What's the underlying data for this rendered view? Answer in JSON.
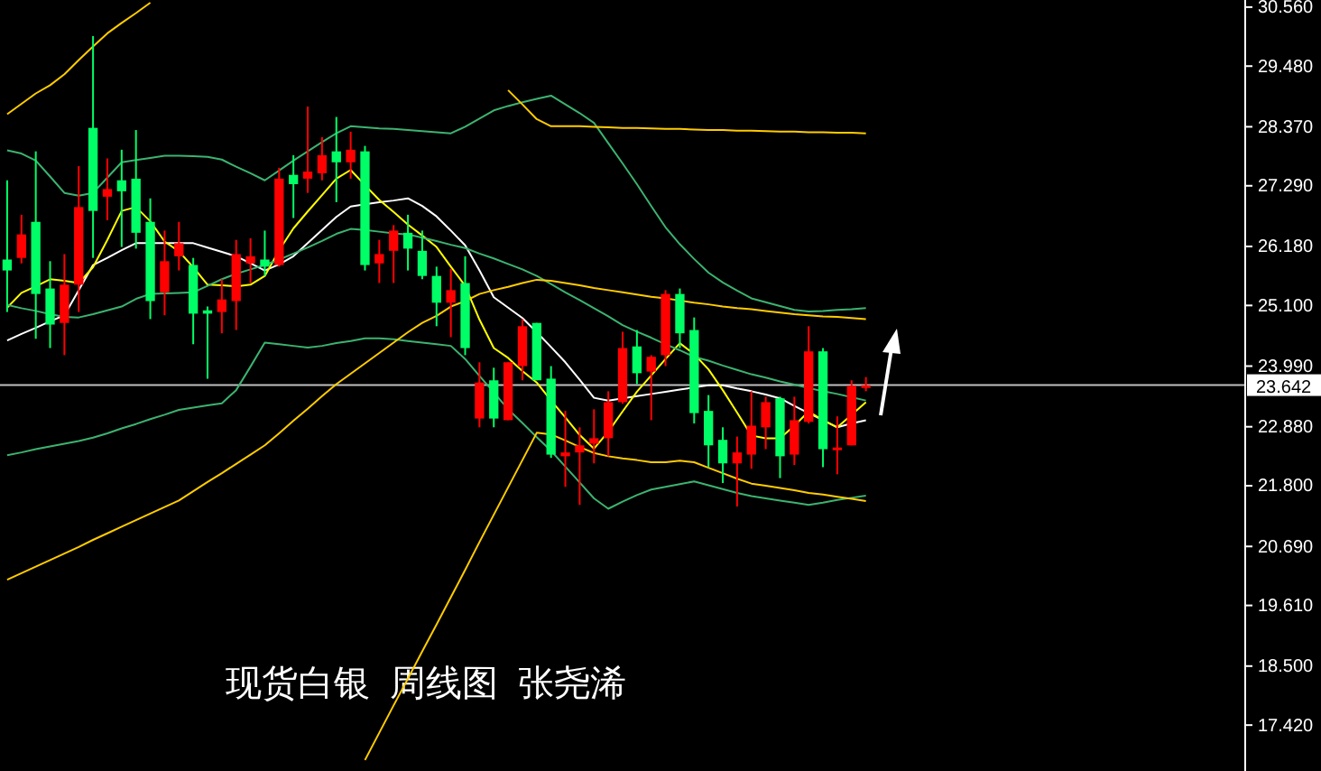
{
  "chart_data": {
    "type": "candlestick",
    "title": "现货白银  周线图  张尧浠",
    "categories": [
      null,
      null,
      null,
      null,
      null,
      null,
      null,
      null,
      null,
      null,
      null,
      null,
      null,
      null,
      null,
      null,
      null,
      null,
      null,
      null,
      null,
      null,
      null,
      null,
      null,
      null,
      null,
      null,
      null,
      null,
      null,
      null,
      null,
      null,
      null,
      null,
      null,
      null,
      null,
      null,
      null,
      null,
      null,
      null,
      null,
      null,
      null,
      null,
      null,
      null,
      null,
      null,
      null,
      null,
      null,
      null,
      null,
      null,
      null,
      null,
      null
    ],
    "ohlc": [
      [
        25.94,
        27.39,
        24.98,
        25.74
      ],
      [
        25.97,
        26.76,
        25.87,
        26.4
      ],
      [
        26.63,
        27.92,
        24.49,
        25.31
      ],
      [
        25.41,
        25.91,
        24.32,
        24.75
      ],
      [
        24.78,
        26.04,
        24.19,
        25.48
      ],
      [
        25.48,
        27.65,
        24.98,
        26.9
      ],
      [
        28.35,
        30.03,
        25.97,
        26.83
      ],
      [
        27.09,
        27.79,
        26.66,
        27.23
      ],
      [
        27.39,
        27.95,
        26.17,
        27.19
      ],
      [
        27.42,
        28.31,
        26.14,
        26.43
      ],
      [
        26.63,
        27.06,
        24.85,
        25.18
      ],
      [
        25.34,
        26.47,
        24.92,
        25.91
      ],
      [
        26.0,
        26.63,
        25.74,
        26.24
      ],
      [
        25.84,
        25.97,
        24.39,
        24.95
      ],
      [
        25.01,
        25.08,
        23.76,
        24.95
      ],
      [
        24.98,
        25.58,
        24.59,
        25.21
      ],
      [
        25.18,
        26.3,
        24.65,
        26.04
      ],
      [
        25.87,
        26.33,
        25.51,
        26.0
      ],
      [
        25.94,
        26.47,
        25.64,
        25.81
      ],
      [
        25.84,
        27.62,
        25.81,
        27.42
      ],
      [
        27.49,
        27.85,
        26.7,
        27.32
      ],
      [
        27.42,
        28.74,
        27.16,
        27.55
      ],
      [
        27.52,
        28.18,
        27.39,
        27.85
      ],
      [
        27.92,
        28.55,
        26.99,
        27.72
      ],
      [
        27.72,
        28.28,
        27.42,
        27.95
      ],
      [
        27.92,
        28.02,
        25.74,
        25.84
      ],
      [
        25.87,
        26.3,
        25.51,
        26.04
      ],
      [
        26.1,
        26.57,
        25.51,
        26.47
      ],
      [
        26.43,
        26.76,
        25.74,
        26.14
      ],
      [
        26.1,
        26.47,
        25.58,
        25.64
      ],
      [
        25.64,
        25.81,
        24.72,
        25.15
      ],
      [
        25.15,
        25.77,
        24.52,
        25.38
      ],
      [
        25.51,
        26.0,
        24.19,
        24.32
      ],
      [
        23.03,
        24.06,
        22.87,
        23.69
      ],
      [
        23.73,
        23.96,
        22.87,
        23.03
      ],
      [
        23.0,
        24.06,
        23.0,
        24.06
      ],
      [
        23.99,
        24.85,
        23.73,
        24.72
      ],
      [
        24.78,
        24.78,
        23.73,
        23.73
      ],
      [
        23.76,
        23.99,
        22.31,
        22.37
      ],
      [
        22.34,
        23.17,
        21.78,
        22.41
      ],
      [
        22.41,
        22.87,
        21.45,
        22.54
      ],
      [
        22.57,
        23.2,
        22.21,
        22.67
      ],
      [
        22.67,
        23.53,
        22.34,
        23.33
      ],
      [
        23.33,
        24.62,
        23.3,
        24.32
      ],
      [
        24.35,
        24.65,
        23.66,
        23.86
      ],
      [
        23.89,
        24.19,
        23.0,
        24.16
      ],
      [
        24.19,
        25.38,
        23.99,
        25.31
      ],
      [
        25.31,
        25.41,
        24.32,
        24.59
      ],
      [
        24.65,
        24.88,
        22.94,
        23.13
      ],
      [
        23.17,
        23.46,
        22.14,
        22.54
      ],
      [
        22.64,
        22.87,
        21.85,
        22.21
      ],
      [
        22.21,
        22.7,
        21.42,
        22.41
      ],
      [
        22.37,
        23.53,
        22.11,
        22.9
      ],
      [
        22.87,
        23.43,
        22.47,
        23.33
      ],
      [
        23.4,
        23.43,
        21.94,
        22.34
      ],
      [
        22.37,
        23.43,
        22.18,
        23.0
      ],
      [
        22.97,
        24.72,
        22.94,
        24.26
      ],
      [
        24.26,
        24.32,
        22.14,
        22.47
      ],
      [
        22.47,
        23.07,
        22.01,
        22.5
      ],
      [
        22.54,
        23.73,
        22.54,
        23.63
      ],
      [
        23.63,
        23.79,
        23.53,
        23.64
      ]
    ],
    "colors": [
      "#00ff66",
      "#ff0000",
      "#00ff66",
      "#00ff66",
      "#ff0000",
      "#ff0000",
      "#00ff66",
      "#ff0000",
      "#00ff66",
      "#00ff66",
      "#00ff66",
      "#ff0000",
      "#ff0000",
      "#00ff66",
      "#00ff66",
      "#ff0000",
      "#ff0000",
      "#ff0000",
      "#00ff66",
      "#ff0000",
      "#00ff66",
      "#ff0000",
      "#ff0000",
      "#00ff66",
      "#ff0000",
      "#00ff66",
      "#ff0000",
      "#ff0000",
      "#00ff66",
      "#00ff66",
      "#00ff66",
      "#ff0000",
      "#00ff66",
      "#ff0000",
      "#00ff66",
      "#ff0000",
      "#ff0000",
      "#00ff66",
      "#00ff66",
      "#ff0000",
      "#ff0000",
      "#ff0000",
      "#ff0000",
      "#ff0000",
      "#00ff66",
      "#ff0000",
      "#ff0000",
      "#00ff66",
      "#00ff66",
      "#00ff66",
      "#00ff66",
      "#ff0000",
      "#ff0000",
      "#ff0000",
      "#00ff66",
      "#ff0000",
      "#ff0000",
      "#00ff66",
      "#ff0000",
      "#ff0000",
      "#ff0000"
    ],
    "series": [
      {
        "type": "line",
        "color": "#ffffff",
        "values": [
          24.46,
          24.58,
          24.69,
          24.81,
          24.92,
          25.38,
          25.84,
          25.97,
          26.11,
          26.24,
          26.24,
          26.24,
          26.24,
          26.24,
          26.16,
          26.08,
          26.0,
          25.87,
          25.74,
          25.85,
          26.0,
          26.24,
          26.48,
          26.72,
          26.91,
          26.95,
          26.99,
          27.02,
          27.06,
          26.92,
          26.73,
          26.47,
          26.2,
          25.74,
          25.25,
          25.06,
          24.87,
          24.61,
          24.34,
          24.06,
          23.74,
          23.41,
          23.36,
          23.4,
          23.44,
          23.48,
          23.52,
          23.56,
          23.6,
          23.64,
          23.64,
          23.58,
          23.53,
          23.47,
          23.4,
          23.26,
          23.13,
          23.0,
          22.87,
          22.94,
          23.0
        ]
      },
      {
        "type": "line",
        "color": "#ffff00",
        "values": [
          25.06,
          25.33,
          25.45,
          25.58,
          25.55,
          25.51,
          25.8,
          26.3,
          26.83,
          26.9,
          26.64,
          26.27,
          26.09,
          25.8,
          25.48,
          25.47,
          25.45,
          25.48,
          25.64,
          26.11,
          26.51,
          26.82,
          27.12,
          27.42,
          27.58,
          27.3,
          27.03,
          26.81,
          26.58,
          26.38,
          26.17,
          25.81,
          25.46,
          24.84,
          24.32,
          24.14,
          23.9,
          23.69,
          23.36,
          23.05,
          22.73,
          22.48,
          22.79,
          23.16,
          23.52,
          23.82,
          24.12,
          24.41,
          24.21,
          23.93,
          23.55,
          23.14,
          22.72,
          22.67,
          22.67,
          22.9,
          23.16,
          23.0,
          22.87,
          23.1,
          23.33
        ]
      },
      {
        "type": "line",
        "color": "#3cb371",
        "values": [
          27.94,
          27.88,
          27.75,
          27.46,
          27.16,
          27.11,
          27.16,
          27.44,
          27.72,
          27.76,
          27.8,
          27.84,
          27.84,
          27.83,
          27.82,
          27.77,
          27.64,
          27.52,
          27.39,
          27.57,
          27.75,
          27.92,
          28.09,
          28.25,
          28.38,
          28.36,
          28.34,
          28.33,
          28.31,
          28.29,
          28.27,
          28.25,
          28.37,
          28.52,
          28.67,
          28.75,
          28.82,
          28.88,
          28.94,
          28.78,
          28.62,
          28.44,
          28.07,
          27.7,
          27.32,
          26.92,
          26.53,
          26.22,
          25.95,
          25.7,
          25.52,
          25.37,
          25.23,
          25.16,
          25.09,
          25.02,
          24.99,
          25.0,
          25.02,
          25.03,
          25.05
        ]
      },
      {
        "type": "line",
        "color": "#3cb371",
        "values": [
          25.11,
          25.05,
          25.0,
          24.94,
          24.89,
          24.88,
          24.94,
          25.01,
          25.08,
          25.22,
          25.31,
          25.32,
          25.33,
          25.34,
          25.46,
          25.58,
          25.68,
          25.76,
          25.84,
          25.94,
          26.05,
          26.16,
          26.28,
          26.41,
          26.5,
          26.48,
          26.45,
          26.42,
          26.4,
          26.34,
          26.28,
          26.21,
          26.15,
          26.05,
          25.96,
          25.86,
          25.76,
          25.64,
          25.49,
          25.34,
          25.2,
          25.05,
          24.9,
          24.74,
          24.62,
          24.51,
          24.39,
          24.28,
          24.16,
          24.09,
          24.0,
          23.92,
          23.84,
          23.78,
          23.71,
          23.65,
          23.59,
          23.53,
          23.48,
          23.42,
          23.36
        ]
      },
      {
        "type": "line",
        "color": "#3cb371",
        "values": [
          22.36,
          22.41,
          22.47,
          22.52,
          22.57,
          22.62,
          22.68,
          22.76,
          22.85,
          22.93,
          23.02,
          23.1,
          23.19,
          23.23,
          23.27,
          23.31,
          23.55,
          23.98,
          24.42,
          24.39,
          24.36,
          24.33,
          24.36,
          24.41,
          24.45,
          24.5,
          24.5,
          24.48,
          24.45,
          24.42,
          24.39,
          24.36,
          24.12,
          23.81,
          23.51,
          23.2,
          22.95,
          22.69,
          22.44,
          22.15,
          21.86,
          21.57,
          21.38,
          21.51,
          21.63,
          21.73,
          21.78,
          21.83,
          21.88,
          21.81,
          21.74,
          21.67,
          21.61,
          21.57,
          21.53,
          21.49,
          21.45,
          21.49,
          21.54,
          21.58,
          21.62
        ]
      },
      {
        "type": "line",
        "color": "#ffcc00",
        "values": [
          20.08,
          20.2,
          20.32,
          20.44,
          20.56,
          20.68,
          20.81,
          20.93,
          21.05,
          21.17,
          21.29,
          21.41,
          21.53,
          21.7,
          21.87,
          22.03,
          22.2,
          22.37,
          22.54,
          22.76,
          22.99,
          23.21,
          23.44,
          23.66,
          23.85,
          24.04,
          24.23,
          24.42,
          24.61,
          24.78,
          24.91,
          25.08,
          25.18,
          25.31,
          25.38,
          25.44,
          25.51,
          25.57,
          25.55,
          25.51,
          25.47,
          25.42,
          25.38,
          25.34,
          25.3,
          25.26,
          25.23,
          25.19,
          25.15,
          25.12,
          25.08,
          25.05,
          25.03,
          25.0,
          24.97,
          24.94,
          24.92,
          24.9,
          24.89,
          24.87,
          24.85
        ]
      },
      {
        "type": "line",
        "color": "#ffcc00",
        "values": [
          28.6,
          28.79,
          28.98,
          29.13,
          29.33,
          29.59,
          29.84,
          30.08,
          30.27,
          30.45,
          30.64,
          null,
          null,
          null,
          null,
          null,
          null,
          null,
          null,
          null,
          null,
          null,
          null,
          null,
          null,
          null,
          null,
          null,
          null,
          null,
          null,
          null,
          null,
          null,
          null,
          29.04,
          28.78,
          28.51,
          28.38,
          28.38,
          28.38,
          28.37,
          28.36,
          28.35,
          28.35,
          28.34,
          28.33,
          28.33,
          28.32,
          28.31,
          28.31,
          28.3,
          28.3,
          28.29,
          28.28,
          28.28,
          28.27,
          28.27,
          28.26,
          28.26,
          28.25
        ]
      },
      {
        "type": "line",
        "color": "#ffcc00",
        "values": [
          null,
          null,
          null,
          null,
          null,
          null,
          null,
          null,
          null,
          null,
          null,
          null,
          null,
          null,
          null,
          null,
          null,
          null,
          null,
          null,
          null,
          null,
          null,
          null,
          null,
          16.78,
          17.28,
          17.78,
          18.27,
          18.77,
          19.26,
          19.76,
          20.26,
          20.77,
          21.27,
          21.77,
          22.27,
          22.77,
          22.74,
          22.63,
          22.51,
          22.4,
          22.34,
          22.3,
          22.27,
          22.23,
          22.23,
          22.26,
          22.23,
          22.13,
          22.03,
          21.93,
          21.84,
          21.8,
          21.76,
          21.72,
          21.67,
          21.64,
          21.6,
          21.56,
          21.52
        ]
      }
    ],
    "ylim": [
      16.58,
      30.69
    ],
    "yticks": [
      {
        "value": 30.56,
        "label": "30.560"
      },
      {
        "value": 29.48,
        "label": "29.480"
      },
      {
        "value": 28.37,
        "label": "28.370"
      },
      {
        "value": 27.29,
        "label": "27.290"
      },
      {
        "value": 26.18,
        "label": "26.180"
      },
      {
        "value": 25.1,
        "label": "25.100"
      },
      {
        "value": 23.99,
        "label": "23.990"
      },
      {
        "value": 22.88,
        "label": "22.880"
      },
      {
        "value": 21.8,
        "label": "21.800"
      },
      {
        "value": 20.69,
        "label": "20.690"
      },
      {
        "value": 19.61,
        "label": "19.610"
      },
      {
        "value": 18.5,
        "label": "18.500"
      },
      {
        "value": 17.42,
        "label": "17.420"
      }
    ],
    "tick_labels": "y",
    "ref_lines": [
      {
        "axis": "y",
        "value": 23.642,
        "label": "23.642",
        "color": "#c0c0c0"
      }
    ]
  }
}
